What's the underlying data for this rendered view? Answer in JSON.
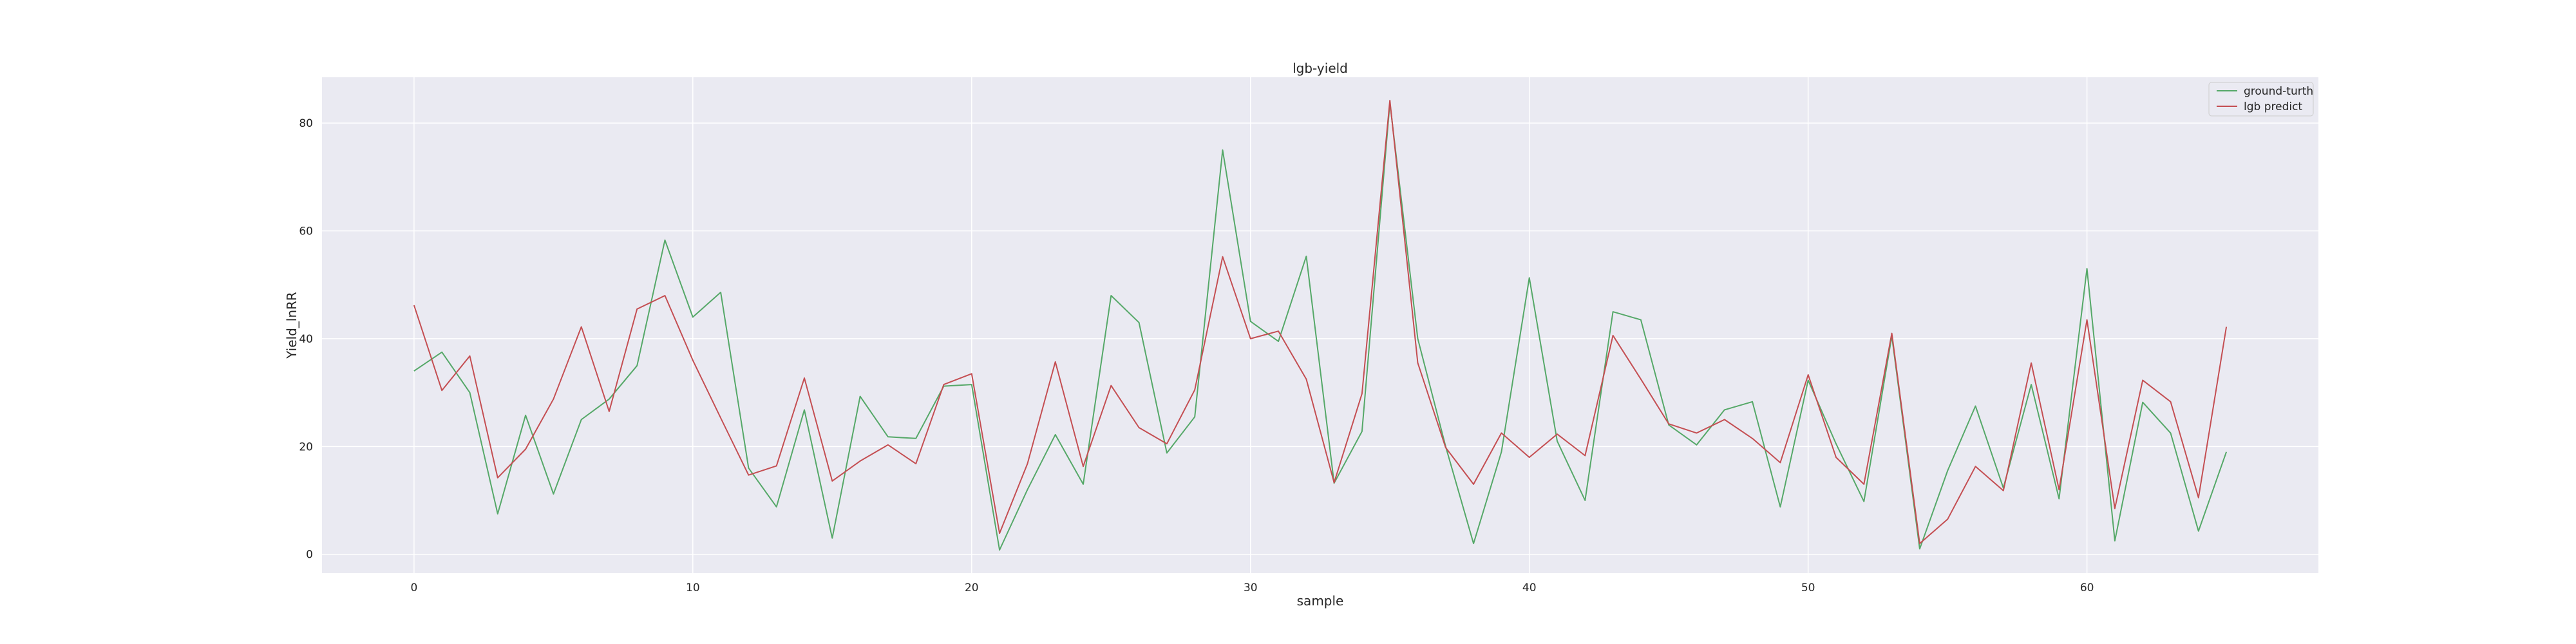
{
  "chart_data": {
    "type": "line",
    "title": "lgb-yield",
    "xlabel": "sample",
    "ylabel": "Yield_lnRR",
    "xlim": [
      -3.3,
      68.3
    ],
    "ylim": [
      -3.5,
      88.5
    ],
    "xticks": [
      0,
      10,
      20,
      30,
      40,
      50,
      60
    ],
    "yticks": [
      0,
      20,
      40,
      60,
      80
    ],
    "grid": true,
    "legend_position": "top-right",
    "x": [
      0,
      1,
      2,
      3,
      4,
      5,
      6,
      7,
      8,
      9,
      10,
      11,
      12,
      13,
      14,
      15,
      16,
      17,
      18,
      19,
      20,
      21,
      22,
      23,
      24,
      25,
      26,
      27,
      28,
      29,
      30,
      31,
      32,
      33,
      34,
      35,
      36,
      37,
      38,
      39,
      40,
      41,
      42,
      43,
      44,
      45,
      46,
      47,
      48,
      49,
      50,
      51,
      52,
      53,
      54,
      55,
      56,
      57,
      58,
      59,
      60,
      61,
      62,
      63,
      64,
      65
    ],
    "series": [
      {
        "name": "ground-turth",
        "color": "#55a868",
        "values": [
          34,
          37.5,
          30,
          7.5,
          25.8,
          11.2,
          25,
          28.8,
          35,
          58.3,
          44,
          48.6,
          16,
          8.8,
          26.8,
          3,
          29.3,
          21.8,
          21.5,
          31.2,
          31.5,
          0.8,
          12,
          22.2,
          13,
          48,
          43,
          18.8,
          25.5,
          75,
          43.2,
          39.5,
          55.3,
          13.2,
          22.8,
          83.8,
          40,
          20,
          2,
          19,
          51.3,
          21,
          10,
          45,
          43.5,
          24,
          20.3,
          26.8,
          28.3,
          8.8,
          32.3,
          20.5,
          9.8,
          40.5,
          1,
          15.5,
          27.5,
          12.3,
          31.5,
          10.3,
          53,
          2.5,
          28.2,
          22.5,
          4.3,
          19
        ]
      },
      {
        "name": "lgb predict",
        "color": "#c44e52",
        "values": [
          46.2,
          30.4,
          36.8,
          14.2,
          19.5,
          28.8,
          42.2,
          26.5,
          45.5,
          48,
          36,
          25.3,
          14.7,
          16.4,
          32.7,
          13.6,
          17.3,
          20.3,
          16.8,
          31.5,
          33.5,
          3.9,
          16.8,
          35.7,
          16.3,
          31.3,
          23.5,
          20.5,
          30.5,
          55.2,
          40,
          41.4,
          32.5,
          13.3,
          29.8,
          84.2,
          35.5,
          19.8,
          13,
          22.5,
          18,
          22.3,
          18.3,
          40.6,
          32.5,
          24.2,
          22.5,
          25,
          21.5,
          17,
          33.3,
          18,
          13,
          41,
          2,
          6.5,
          16.3,
          11.8,
          35.5,
          12,
          43.5,
          8.5,
          32.3,
          28.3,
          10.5,
          42.2
        ]
      }
    ]
  }
}
